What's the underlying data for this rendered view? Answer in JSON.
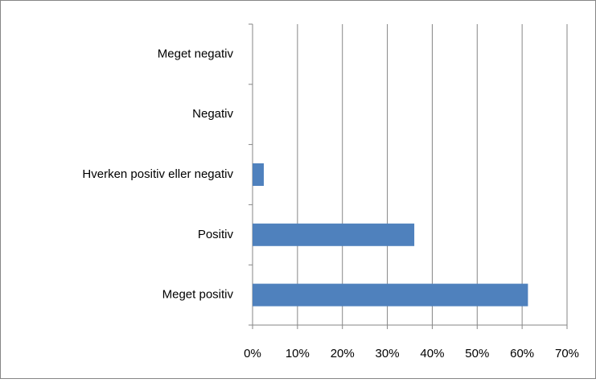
{
  "chart_data": {
    "type": "hbar",
    "categories": [
      "Meget negativ",
      "Negativ",
      "Hverken positiv eller negativ",
      "Positiv",
      "Meget positiv"
    ],
    "values": [
      0,
      0,
      2.5,
      36,
      61.3
    ],
    "color": "#4f81bd",
    "xlim": [
      0,
      70
    ],
    "xticks": [
      {
        "value": 0,
        "label": "0%"
      },
      {
        "value": 10,
        "label": "10%"
      },
      {
        "value": 20,
        "label": "20%"
      },
      {
        "value": 30,
        "label": "30%"
      },
      {
        "value": 40,
        "label": "40%"
      },
      {
        "value": 50,
        "label": "50%"
      },
      {
        "value": 60,
        "label": "60%"
      },
      {
        "value": 70,
        "label": "70%"
      }
    ],
    "grid": true
  }
}
